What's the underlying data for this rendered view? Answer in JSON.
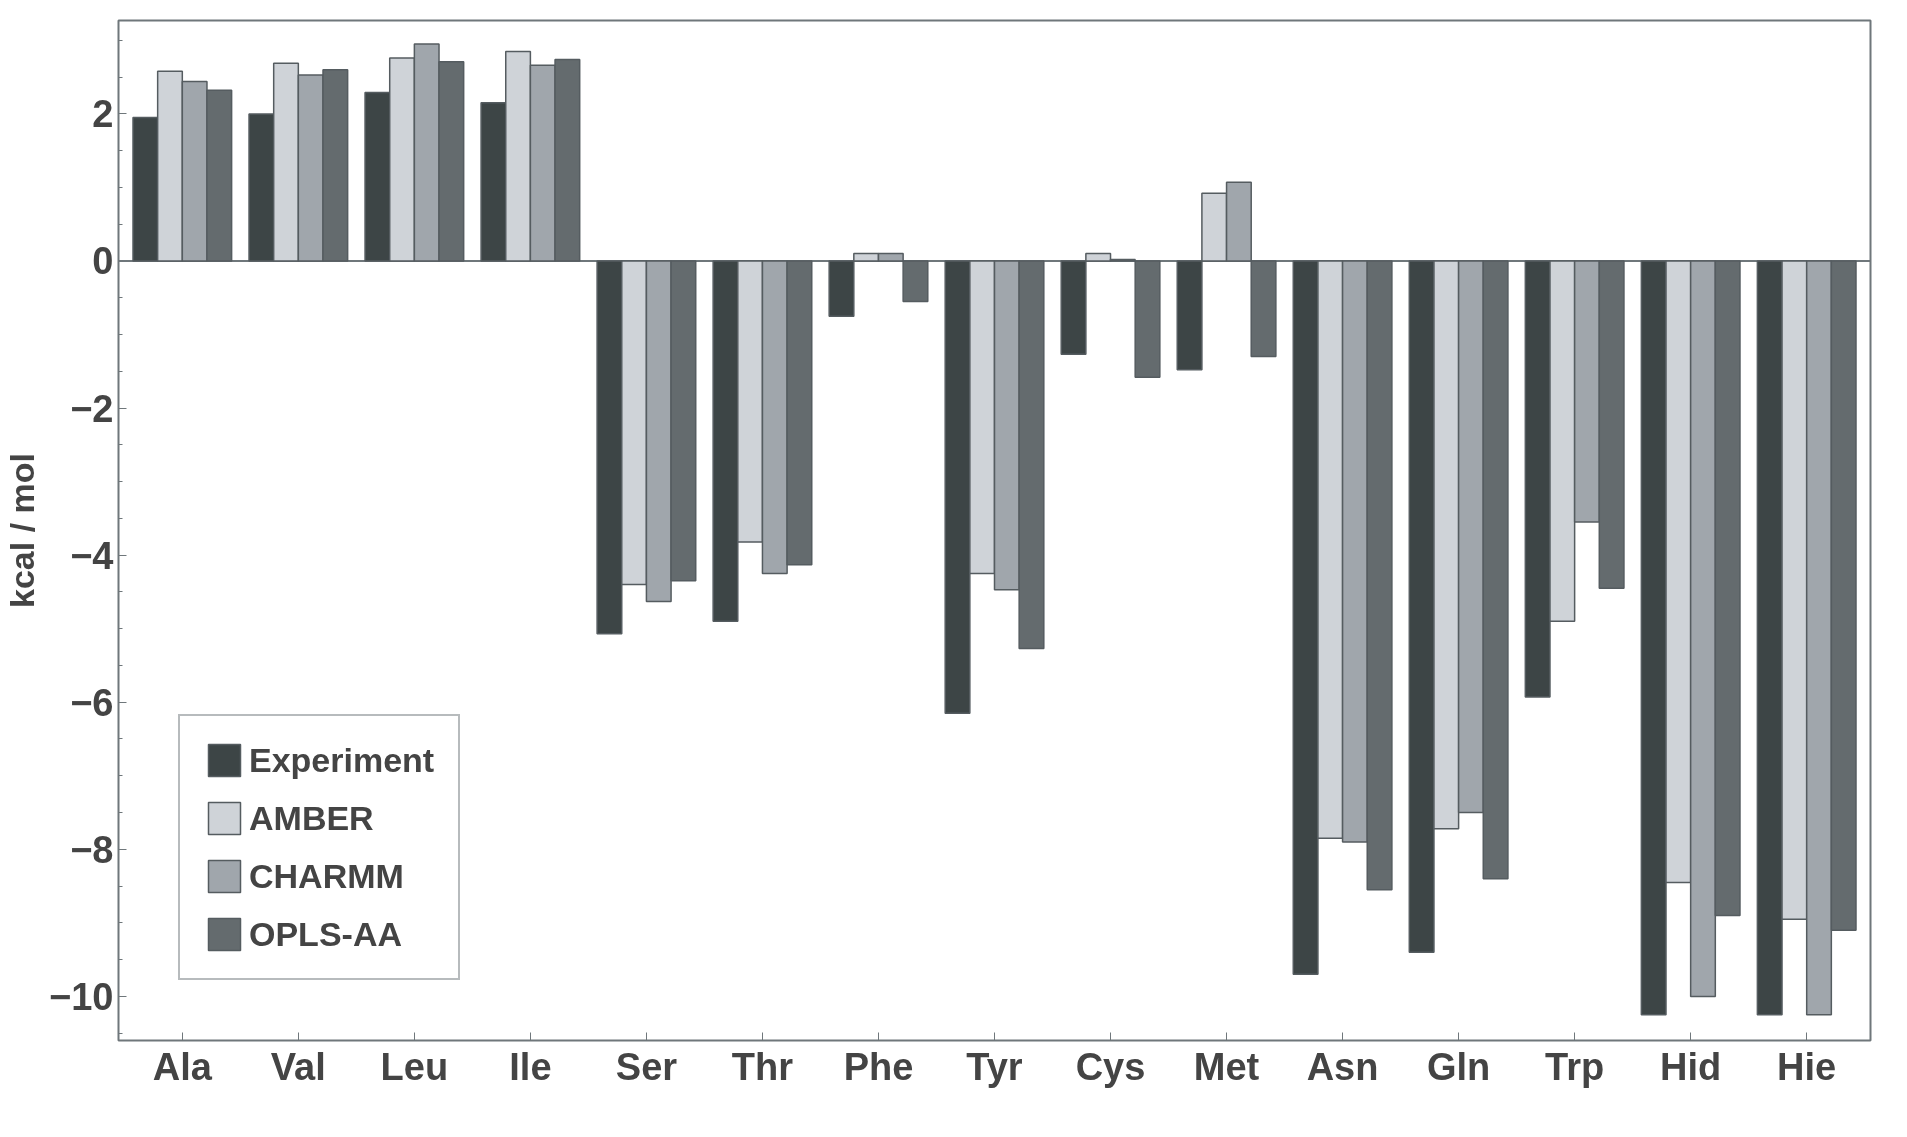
{
  "chart_data": {
    "type": "bar",
    "ylabel": "kcal / mol",
    "categories": [
      "Ala",
      "Val",
      "Leu",
      "Ile",
      "Ser",
      "Thr",
      "Phe",
      "Tyr",
      "Cys",
      "Met",
      "Asn",
      "Gln",
      "Trp",
      "Hid",
      "Hie"
    ],
    "series": [
      {
        "name": "Experiment",
        "color": "#3d4546",
        "values": [
          1.95,
          2.0,
          2.29,
          2.15,
          -5.07,
          -4.9,
          -0.75,
          -6.15,
          -1.27,
          -1.48,
          -9.7,
          -9.4,
          -5.93,
          -10.25,
          -10.25
        ]
      },
      {
        "name": "AMBER",
        "color": "#cfd3d8",
        "values": [
          2.58,
          2.69,
          2.76,
          2.85,
          -4.4,
          -3.82,
          0.1,
          -4.25,
          0.1,
          0.92,
          -7.85,
          -7.72,
          -4.9,
          -8.45,
          -8.95
        ]
      },
      {
        "name": "CHARMM",
        "color": "#a0a6ac",
        "values": [
          2.44,
          2.53,
          2.95,
          2.66,
          -4.63,
          -4.25,
          0.1,
          -4.47,
          0.02,
          1.07,
          -7.9,
          -7.5,
          -3.55,
          -10.0,
          -10.25
        ]
      },
      {
        "name": "OPLS-AA",
        "color": "#646b6e",
        "values": [
          2.32,
          2.6,
          2.71,
          2.74,
          -4.35,
          -4.13,
          -0.55,
          -5.27,
          -1.58,
          -1.3,
          -8.55,
          -8.4,
          -4.45,
          -8.9,
          -9.1
        ]
      }
    ],
    "ylim": [
      -10.6,
      3.27
    ],
    "yticks": [
      {
        "value": -10,
        "label": "−10"
      },
      {
        "value": -8,
        "label": "−8"
      },
      {
        "value": -6,
        "label": "−6"
      },
      {
        "value": -4,
        "label": "−4"
      },
      {
        "value": -2,
        "label": "−2"
      },
      0,
      2
    ],
    "ref_lines": [
      {
        "axis": "y",
        "value": 0,
        "color": "#6f777b"
      }
    ],
    "legend": "bottom left",
    "grid": false
  }
}
